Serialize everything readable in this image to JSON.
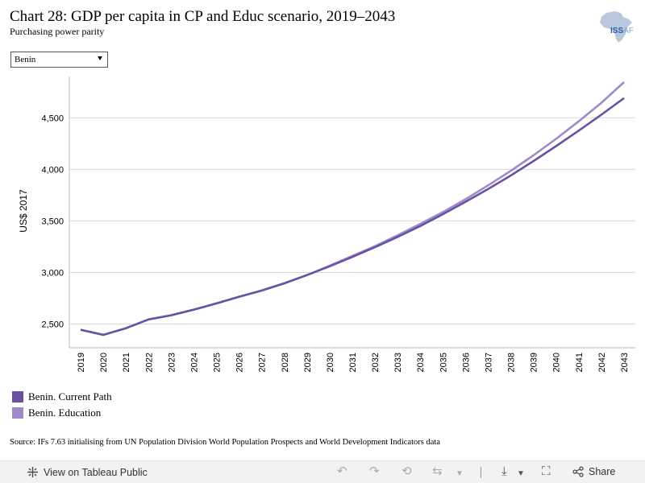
{
  "header": {
    "title": "Chart 28: GDP per capita in CP and Educ scenario, 2019–2043",
    "subtitle": "Purchasing power parity"
  },
  "logo": {
    "text_bold": "ISS",
    "text_light": "AF"
  },
  "filter": {
    "selected": "Benin"
  },
  "chart_data": {
    "type": "line",
    "ylabel": "US$ 2017",
    "ylim": [
      2270,
      4900
    ],
    "yticks": [
      2500,
      3000,
      3500,
      4000,
      4500
    ],
    "ytick_labels": [
      "2,500",
      "3,000",
      "3,500",
      "4,000",
      "4,500"
    ],
    "grid": true,
    "x": [
      "2019",
      "2020",
      "2021",
      "2022",
      "2023",
      "2024",
      "2025",
      "2026",
      "2027",
      "2028",
      "2029",
      "2030",
      "2031",
      "2032",
      "2033",
      "2034",
      "2035",
      "2036",
      "2037",
      "2038",
      "2039",
      "2040",
      "2041",
      "2042",
      "2043"
    ],
    "series": [
      {
        "name": "Benin. Current Path",
        "color": "#6a52a3",
        "values": [
          2445,
          2395,
          2460,
          2545,
          2585,
          2640,
          2700,
          2765,
          2825,
          2895,
          2975,
          3060,
          3150,
          3245,
          3345,
          3450,
          3565,
          3685,
          3810,
          3940,
          4080,
          4225,
          4375,
          4530,
          4690
        ]
      },
      {
        "name": "Benin. Education",
        "color": "#9e8ac8",
        "values": [
          2445,
          2395,
          2460,
          2545,
          2585,
          2640,
          2700,
          2765,
          2825,
          2895,
          2975,
          3065,
          3160,
          3255,
          3360,
          3470,
          3585,
          3710,
          3845,
          3985,
          4135,
          4295,
          4465,
          4645,
          4845
        ]
      }
    ],
    "legend_position": "bottom-left"
  },
  "source": "Source: IFs 7.63 initialising from UN Population Division World Population Prospects and World Development Indicators data",
  "footer": {
    "view_label": "View on Tableau Public",
    "share_label": "Share"
  }
}
